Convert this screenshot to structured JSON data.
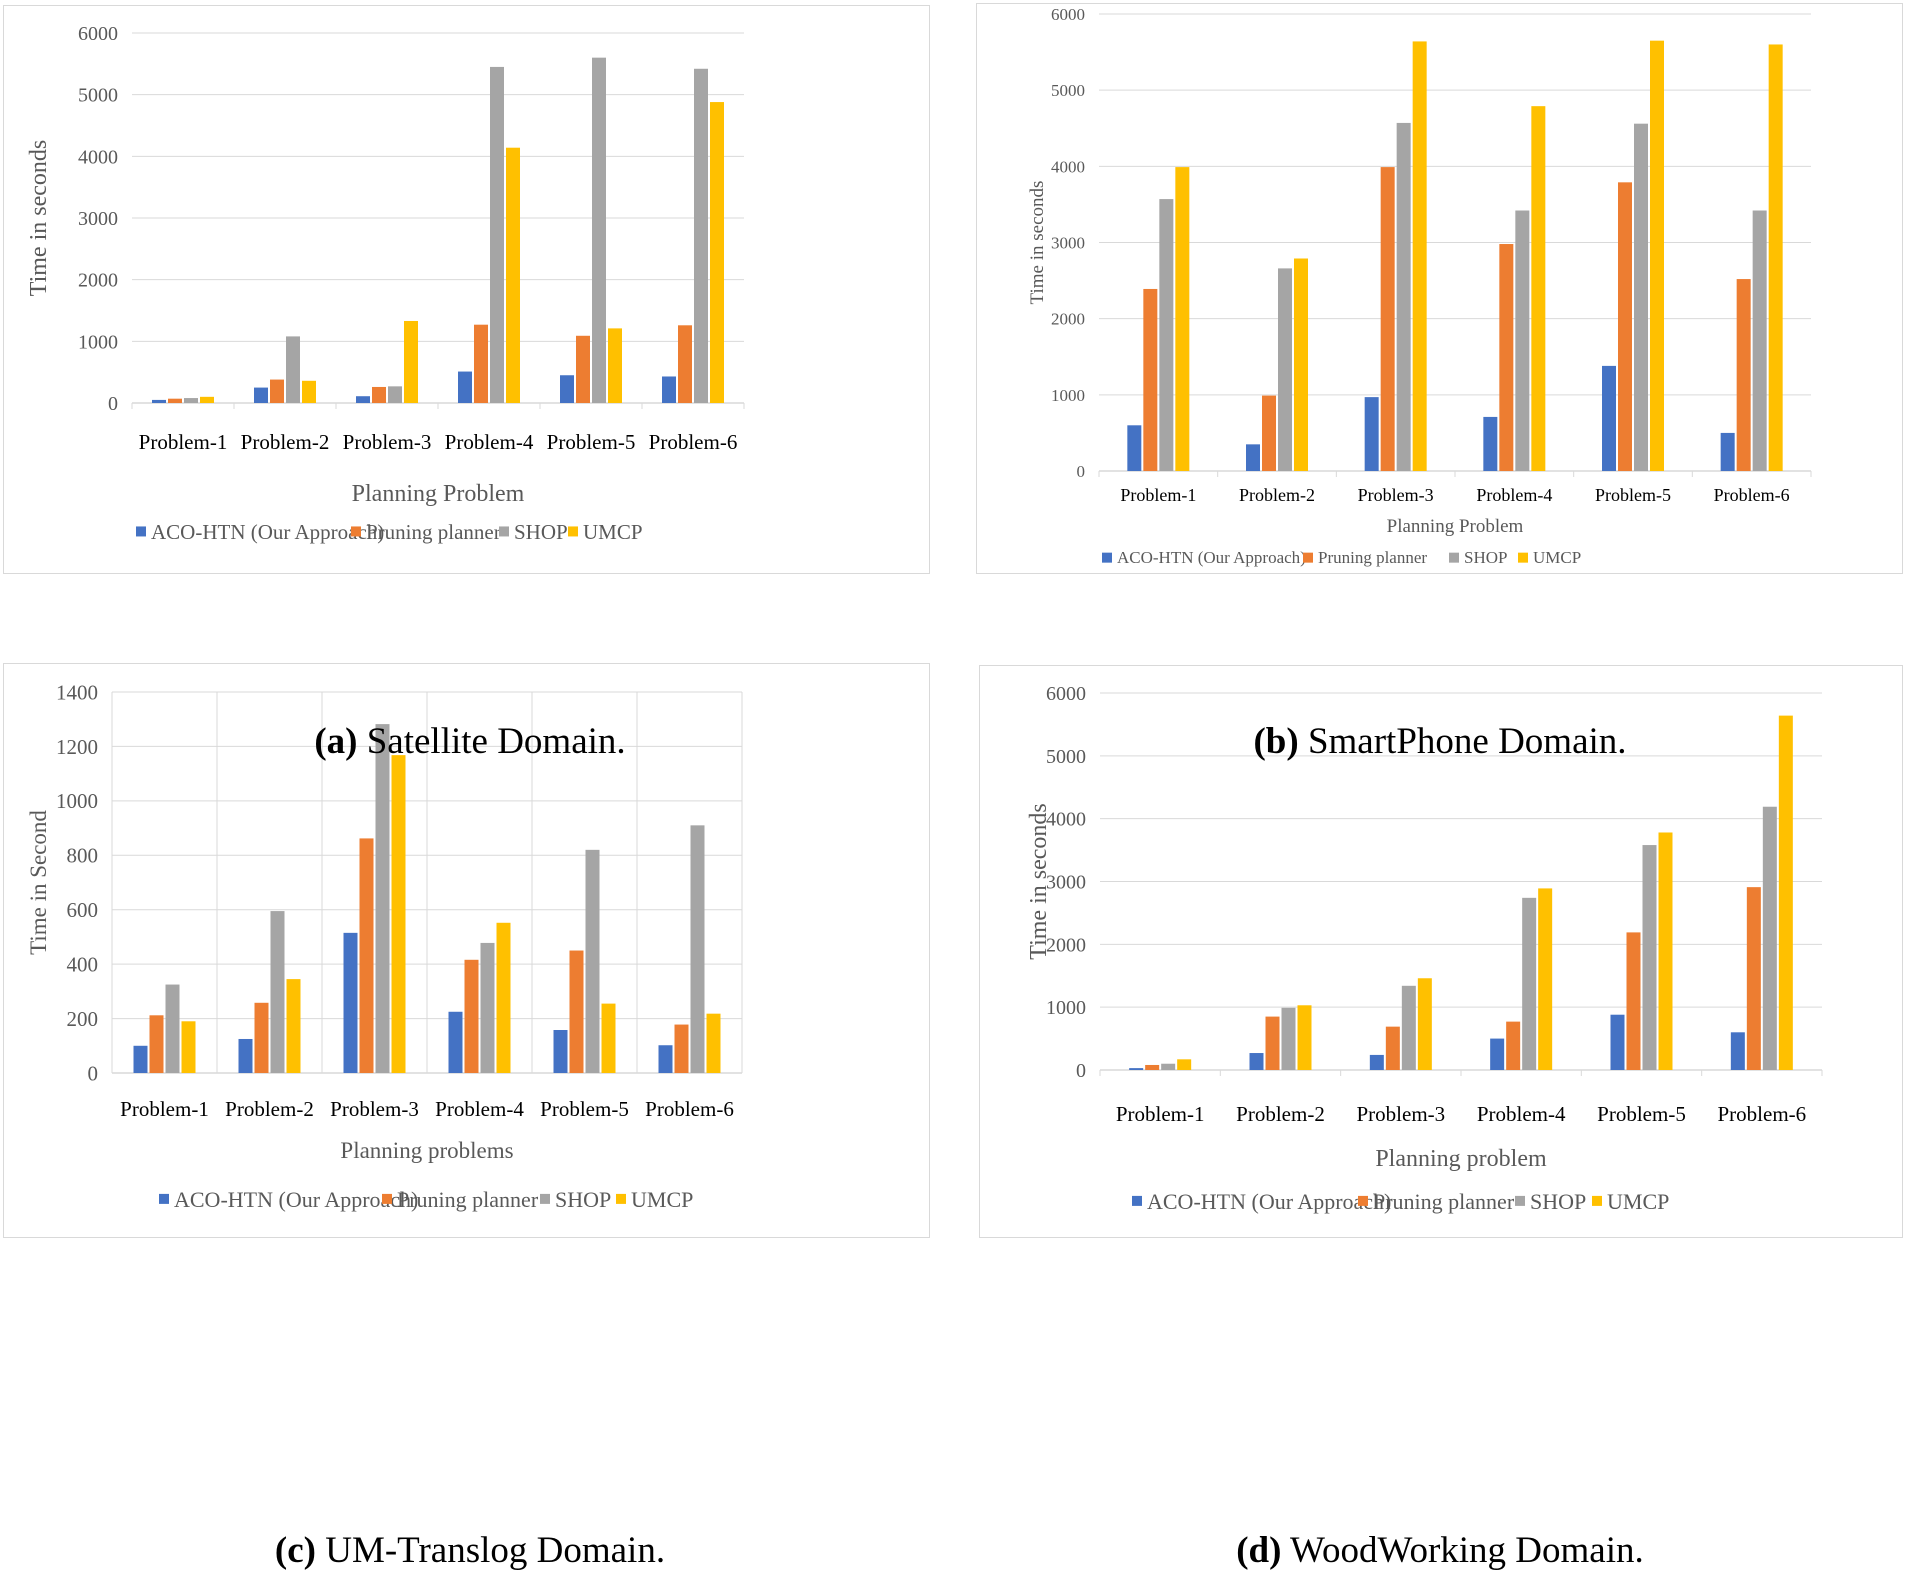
{
  "colors": {
    "ACO-HTN (Our Approach)": "#4472c4",
    "Pruning planner": "#ed7d31",
    "SHOP": "#a5a5a5",
    "UMCP": "#ffc000"
  },
  "chart_data": [
    {
      "type": "bar",
      "panel": "a",
      "caption_letter": "(a)",
      "caption_text": " Satellite Domain.",
      "title": "",
      "xlabel": "Planning Problem",
      "ylabel": "Time in seconds",
      "ylim": [
        0,
        6000
      ],
      "yticks": [
        0,
        1000,
        2000,
        3000,
        4000,
        5000,
        6000
      ],
      "grid": "horizontal",
      "legend": "bottom",
      "categories": [
        "Problem-1",
        "Problem-2",
        "Problem-3",
        "Problem-4",
        "Problem-5",
        "Problem-6"
      ],
      "series": [
        {
          "name": "ACO-HTN (Our Approach)",
          "values": [
            50,
            250,
            110,
            510,
            450,
            430
          ]
        },
        {
          "name": "Pruning planner",
          "values": [
            70,
            380,
            260,
            1270,
            1090,
            1260
          ]
        },
        {
          "name": "SHOP",
          "values": [
            80,
            1080,
            270,
            5450,
            5600,
            5420
          ]
        },
        {
          "name": "UMCP",
          "values": [
            100,
            360,
            1330,
            4140,
            1210,
            4880
          ]
        }
      ]
    },
    {
      "type": "bar",
      "panel": "b",
      "caption_letter": "(b)",
      "caption_text": " SmartPhone Domain.",
      "title": "",
      "xlabel": "Planning Problem",
      "ylabel": "Time in seconds",
      "ylim": [
        0,
        6000
      ],
      "yticks": [
        0,
        1000,
        2000,
        3000,
        4000,
        5000,
        6000
      ],
      "grid": "horizontal",
      "legend": "bottom",
      "categories": [
        "Problem-1",
        "Problem-2",
        "Problem-3",
        "Problem-4",
        "Problem-5",
        "Problem-6"
      ],
      "series": [
        {
          "name": "ACO-HTN (Our Approach)",
          "values": [
            600,
            350,
            970,
            710,
            1380,
            500
          ]
        },
        {
          "name": "Pruning planner",
          "values": [
            2390,
            990,
            3990,
            2980,
            3790,
            2520
          ]
        },
        {
          "name": "SHOP",
          "values": [
            3570,
            2660,
            4570,
            3420,
            4560,
            3420
          ]
        },
        {
          "name": "UMCP",
          "values": [
            3990,
            2790,
            5640,
            4790,
            5650,
            5600
          ]
        }
      ]
    },
    {
      "type": "bar",
      "panel": "c",
      "caption_letter": "(c)",
      "caption_text": " UM-Translog Domain.",
      "title": "",
      "xlabel": "Planning problems",
      "ylabel": "Time in Second",
      "ylim": [
        0,
        1400
      ],
      "yticks": [
        0,
        200,
        400,
        600,
        800,
        1000,
        1200,
        1400
      ],
      "grid": "both",
      "legend": "bottom",
      "categories": [
        "Problem-1",
        "Problem-2",
        "Problem-3",
        "Problem-4",
        "Problem-5",
        "Problem-6"
      ],
      "series": [
        {
          "name": "ACO-HTN (Our Approach)",
          "values": [
            100,
            125,
            515,
            225,
            158,
            102
          ]
        },
        {
          "name": "Pruning planner",
          "values": [
            212,
            258,
            862,
            416,
            450,
            178
          ]
        },
        {
          "name": "SHOP",
          "values": [
            325,
            595,
            1282,
            478,
            820,
            910
          ]
        },
        {
          "name": "UMCP",
          "values": [
            190,
            345,
            1168,
            552,
            255,
            218
          ]
        }
      ]
    },
    {
      "type": "bar",
      "panel": "d",
      "caption_letter": "(d)",
      "caption_text": " WoodWorking Domain.",
      "title": "",
      "xlabel": "Planning problem",
      "ylabel": "Time in seconds",
      "ylim": [
        0,
        6000
      ],
      "yticks": [
        0,
        1000,
        2000,
        3000,
        4000,
        5000,
        6000
      ],
      "grid": "horizontal",
      "legend": "bottom",
      "categories": [
        "Problem-1",
        "Problem-2",
        "Problem-3",
        "Problem-4",
        "Problem-5",
        "Problem-6"
      ],
      "series": [
        {
          "name": "ACO-HTN (Our Approach)",
          "values": [
            30,
            270,
            240,
            500,
            880,
            600
          ]
        },
        {
          "name": "Pruning planner",
          "values": [
            80,
            850,
            690,
            770,
            2190,
            2910
          ]
        },
        {
          "name": "SHOP",
          "values": [
            100,
            990,
            1340,
            2740,
            3580,
            4190
          ]
        },
        {
          "name": "UMCP",
          "values": [
            170,
            1030,
            1460,
            2890,
            3780,
            5640
          ]
        }
      ]
    }
  ]
}
